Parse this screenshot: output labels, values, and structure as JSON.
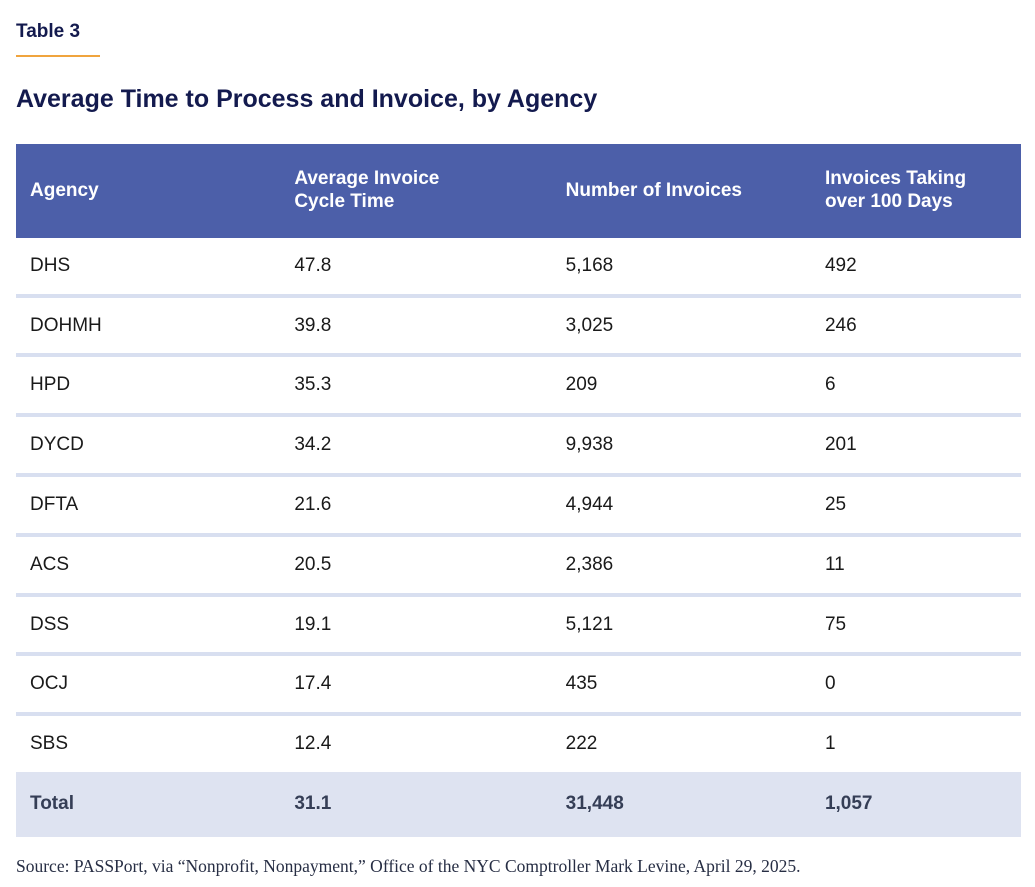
{
  "table_label": "Table 3",
  "title": "Average Time to Process and Invoice, by Agency",
  "table": {
    "columns": [
      {
        "id": "agency",
        "lines": [
          "Agency"
        ]
      },
      {
        "id": "cycle_time",
        "lines": [
          "Average Invoice",
          "Cycle Time"
        ]
      },
      {
        "id": "num_invoices",
        "lines": [
          "Number of Invoices"
        ]
      },
      {
        "id": "over_100_days",
        "lines": [
          "Invoices Taking",
          "over 100 Days"
        ]
      }
    ],
    "rows": [
      {
        "cells": [
          "DHS",
          "47.8",
          "5,168",
          "492"
        ]
      },
      {
        "cells": [
          "DOHMH",
          "39.8",
          "3,025",
          "246"
        ]
      },
      {
        "cells": [
          "HPD",
          "35.3",
          "209",
          "6"
        ]
      },
      {
        "cells": [
          "DYCD",
          "34.2",
          "9,938",
          "201"
        ]
      },
      {
        "cells": [
          "DFTA",
          "21.6",
          "4,944",
          "25"
        ]
      },
      {
        "cells": [
          "ACS",
          "20.5",
          "2,386",
          "11"
        ]
      },
      {
        "cells": [
          "DSS",
          "19.1",
          "5,121",
          "75"
        ]
      },
      {
        "cells": [
          "OCJ",
          "17.4",
          "435",
          "0"
        ]
      },
      {
        "cells": [
          "SBS",
          "12.4",
          "222",
          "1"
        ]
      }
    ],
    "total_row": {
      "cells": [
        "Total",
        "31.1",
        "31,448",
        "1,057"
      ]
    }
  },
  "source": "Source: PASSPort, via “Nonprofit, Nonpayment,” Office of the NYC Comptroller Mark Levine, April 29, 2025.",
  "colors": {
    "heading_navy": "#131a4e",
    "accent_orange": "#f0a43e",
    "header_background": "#4c5fa9",
    "header_text": "#ffffff",
    "row_separator": "#d8dff0",
    "total_row_background": "#dee3f1",
    "total_row_text": "#353e56",
    "body_text": "#1a1a1a",
    "source_text": "#272e44"
  }
}
